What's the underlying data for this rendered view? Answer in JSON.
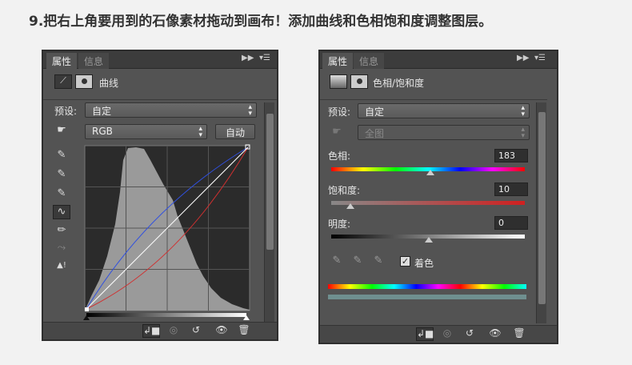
{
  "title": "9.把右上角要用到的石像素材拖动到画布！添加曲线和色相饱和度调整图层。",
  "curves_panel": {
    "tabs": [
      "属性",
      "信息"
    ],
    "header": "曲线",
    "preset_label": "预设:",
    "preset_value": "自定",
    "channel_value": "RGB",
    "auto_button": "自动",
    "tools": [
      "hand-target-icon",
      "eyedropper-black-icon",
      "eyedropper-gray-icon",
      "eyedropper-white-icon",
      "curve-point-icon",
      "pencil-icon",
      "smooth-icon",
      "clipping-warning-icon"
    ]
  },
  "hue_panel": {
    "tabs": [
      "属性",
      "信息"
    ],
    "header": "色相/饱和度",
    "preset_label": "预设:",
    "preset_value": "自定",
    "range_value": "全图",
    "hue_label": "色相:",
    "hue_value": "183",
    "saturation_label": "饱和度:",
    "saturation_value": "10",
    "lightness_label": "明度:",
    "lightness_value": "0",
    "colorize_label": "着色",
    "colorize_checked": true
  },
  "colors": {
    "panel": "#535353",
    "tabbar": "#3c3c3c",
    "title": "#333333"
  }
}
